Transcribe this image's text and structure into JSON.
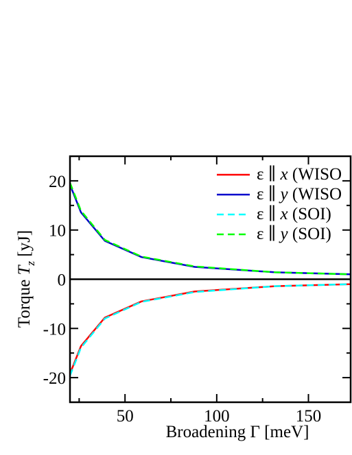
{
  "chart_data": {
    "type": "line",
    "xlabel": "Broadening Γ [meV]",
    "ylabel_prefix": "Torque ",
    "ylabel_var": "T",
    "ylabel_sub": "z",
    "ylabel_unit": " [yJ]",
    "xlim": [
      20,
      173
    ],
    "ylim": [
      -25,
      25
    ],
    "xticks": [
      50,
      100,
      150
    ],
    "yticks": [
      -20,
      -10,
      0,
      10,
      20
    ],
    "zero_line": true,
    "grid": false,
    "legend_position": "top-right",
    "series": [
      {
        "name_prefix": "ε ∥ ",
        "name_var": "x",
        "name_suffix": " (WISO",
        "color": "#ff0000",
        "dash": "solid",
        "x": [
          20,
          26,
          39,
          59,
          88,
          132,
          173
        ],
        "y": [
          -19.2,
          -13.6,
          -7.8,
          -4.5,
          -2.5,
          -1.4,
          -1.0
        ]
      },
      {
        "name_prefix": "ε ∥ ",
        "name_var": "y",
        "name_suffix": " (WISO",
        "color": "#0000cc",
        "dash": "solid",
        "x": [
          20,
          26,
          39,
          59,
          88,
          132,
          173
        ],
        "y": [
          19.2,
          13.6,
          7.8,
          4.5,
          2.5,
          1.4,
          1.0
        ]
      },
      {
        "name_prefix": "ε ∥ ",
        "name_var": "x",
        "name_suffix": " (SOI)",
        "color": "#00ffff",
        "dash": "dashed",
        "x": [
          20,
          26,
          39,
          59,
          88,
          132,
          173
        ],
        "y": [
          -19.6,
          -13.9,
          -8.0,
          -4.6,
          -2.6,
          -1.4,
          -1.0
        ]
      },
      {
        "name_prefix": "ε ∥ ",
        "name_var": "y",
        "name_suffix": " (SOI)",
        "color": "#00ff00",
        "dash": "dashed",
        "x": [
          20,
          26,
          39,
          59,
          88,
          132,
          173
        ],
        "y": [
          19.6,
          13.9,
          8.0,
          4.6,
          2.6,
          1.4,
          1.0
        ]
      }
    ]
  }
}
